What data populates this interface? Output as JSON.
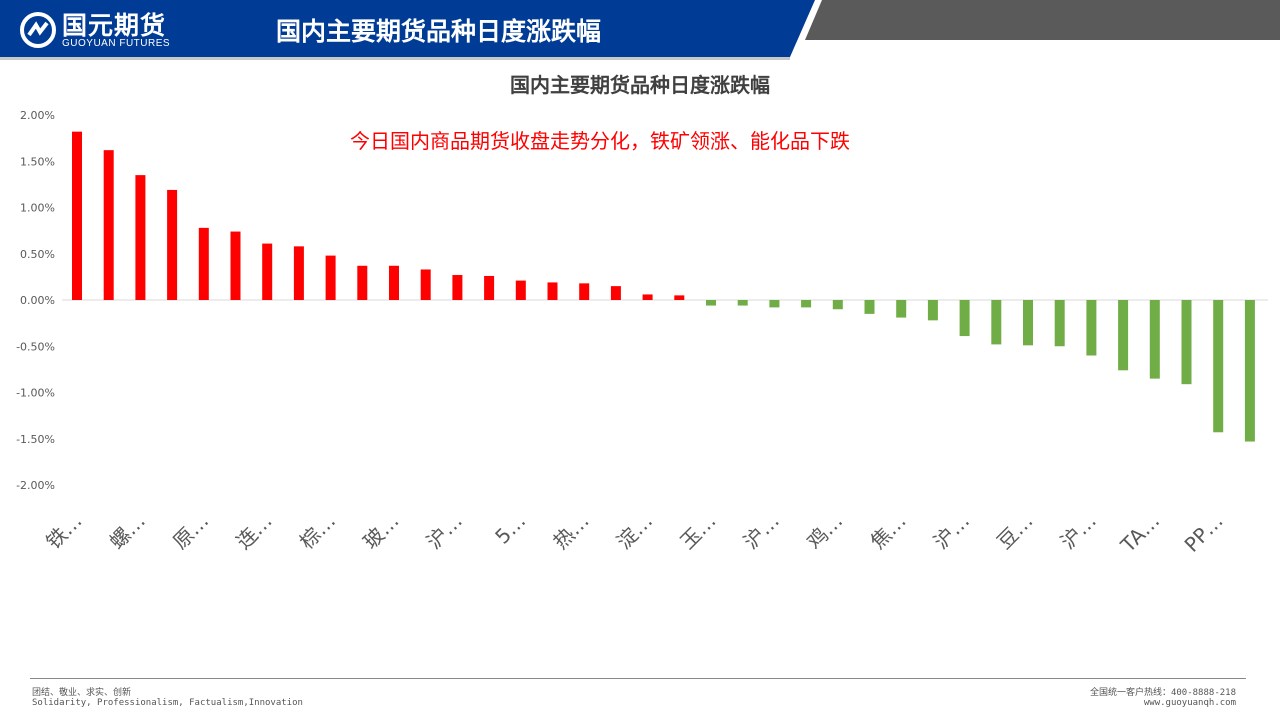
{
  "header": {
    "logo_cn": "国元期货",
    "logo_en": "GUOYUAN FUTURES",
    "title": "国内主要期货品种日度涨跌幅"
  },
  "colors": {
    "brand": "#003c96",
    "up": "#ff0000",
    "down": "#70ad47",
    "band": "#5a5a5a"
  },
  "footer": {
    "motto_cn": "团结、敬业、求实、创新",
    "motto_en": "Solidarity, Professionalism, Factualism,Innovation",
    "hotline": "全国统一客户热线：400-8888-218",
    "website": "www.guoyuanqh.com"
  },
  "chart_data": {
    "type": "bar",
    "title": "国内主要期货品种日度涨跌幅",
    "annotation": "今日国内商品期货收盘走势分化，铁矿领涨、能化品下跌",
    "ylim": [
      -0.02,
      0.02
    ],
    "yticks": [
      "2.00%",
      "1.50%",
      "1.00%",
      "0.50%",
      "0.00%",
      "-0.50%",
      "-1.00%",
      "-1.50%",
      "-2.00%"
    ],
    "ytick_values": [
      0.02,
      0.015,
      0.01,
      0.005,
      0,
      -0.005,
      -0.01,
      -0.015,
      -0.02
    ],
    "category_labels_shown": [
      "铁…",
      "螺…",
      "原…",
      "连…",
      "棕…",
      "玻…",
      "沪…",
      "5…",
      "热…",
      "淀…",
      "玉…",
      "沪…",
      "鸡…",
      "焦…",
      "沪…",
      "豆…",
      "沪…",
      "TA…",
      "PP…"
    ],
    "values": [
      0.0182,
      0.0162,
      0.0135,
      0.0119,
      0.0078,
      0.0074,
      0.0061,
      0.0058,
      0.0048,
      0.0037,
      0.0037,
      0.0033,
      0.0027,
      0.0026,
      0.0021,
      0.0019,
      0.0018,
      0.0015,
      0.0006,
      0.0005,
      -0.0006,
      -0.0006,
      -0.0008,
      -0.0008,
      -0.001,
      -0.0015,
      -0.0019,
      -0.0022,
      -0.0039,
      -0.0048,
      -0.0049,
      -0.005,
      -0.006,
      -0.0076,
      -0.0085,
      -0.0091,
      -0.0143,
      -0.0153
    ],
    "grid": false,
    "legend": "none"
  }
}
